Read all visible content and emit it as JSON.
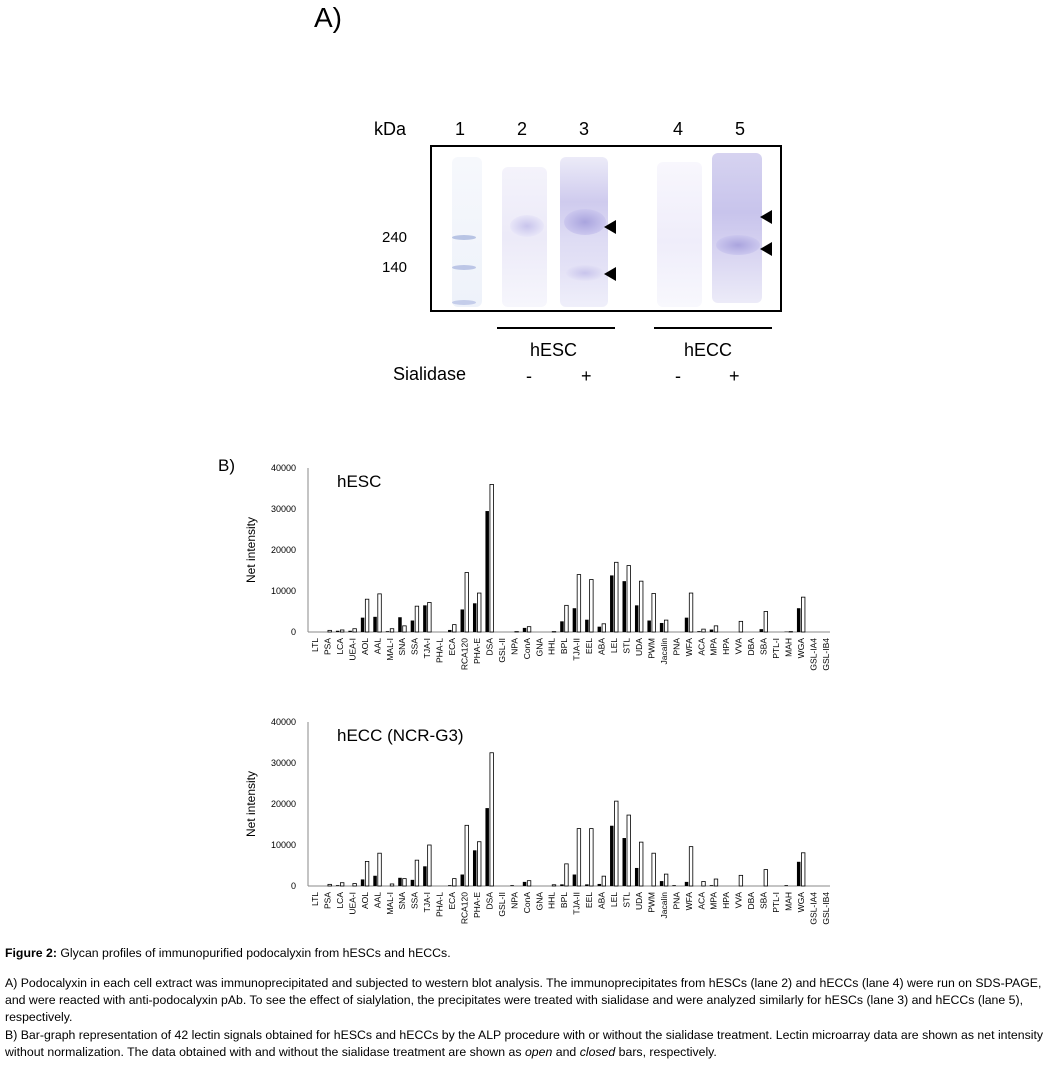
{
  "panel_a": {
    "label": "A)",
    "kda_label": "kDa",
    "lanes": [
      "1",
      "2",
      "3",
      "4",
      "5"
    ],
    "markers": [
      "240",
      "140"
    ],
    "groups": [
      "hESC",
      "hECC"
    ],
    "sialidase_label": "Sialidase",
    "sialidase_signs": [
      "-",
      "+",
      "-",
      "+"
    ]
  },
  "panel_b": {
    "label": "B)"
  },
  "chart_data": [
    {
      "type": "bar",
      "title": "hESC",
      "ylabel": "Net intensity",
      "xlabel": "",
      "ylim": [
        0,
        40000
      ],
      "yticks": [
        "0",
        "10000",
        "20000",
        "30000",
        "40000"
      ],
      "categories": [
        "LTL",
        "PSA",
        "LCA",
        "UEA-I",
        "AOL",
        "AAL",
        "MAL-I",
        "SNA",
        "SSA",
        "TJA-I",
        "PHA-L",
        "ECA",
        "RCA120",
        "PHA-E",
        "DSA",
        "GSL-II",
        "NPA",
        "ConA",
        "GNA",
        "HHL",
        "BPL",
        "TJA-II",
        "EEL",
        "ABA",
        "LEL",
        "STL",
        "UDA",
        "PWM",
        "Jacalin",
        "PNA",
        "WFA",
        "ACA",
        "MPA",
        "HPA",
        "VVA",
        "DBA",
        "SBA",
        "PTL-I",
        "MAH",
        "WGA",
        "GSL-IA4",
        "GSL-IB4"
      ],
      "series": [
        {
          "name": "without sialidase (closed)",
          "color": "#000000",
          "values": [
            0,
            0,
            300,
            300,
            3500,
            3700,
            200,
            3600,
            2800,
            6500,
            0,
            500,
            5500,
            7000,
            29500,
            0,
            0,
            1000,
            0,
            0,
            2600,
            5800,
            3000,
            1300,
            13800,
            12400,
            6500,
            2800,
            2200,
            0,
            3500,
            200,
            600,
            0,
            0,
            0,
            700,
            0,
            100,
            5800,
            0,
            0
          ]
        },
        {
          "name": "with sialidase (open)",
          "color": "#ffffff",
          "values": [
            0,
            400,
            500,
            800,
            8000,
            9300,
            800,
            1500,
            6300,
            7200,
            0,
            1800,
            14500,
            9500,
            36000,
            0,
            100,
            1300,
            0,
            100,
            6500,
            14000,
            12800,
            2000,
            17000,
            16200,
            12400,
            9400,
            2900,
            0,
            9500,
            700,
            1500,
            0,
            2600,
            0,
            5000,
            0,
            100,
            8500,
            0,
            0
          ]
        }
      ]
    },
    {
      "type": "bar",
      "title": "hECC (NCR-G3)",
      "ylabel": "Net intensity",
      "xlabel": "",
      "ylim": [
        0,
        40000
      ],
      "yticks": [
        "0",
        "10000",
        "20000",
        "30000",
        "40000"
      ],
      "categories": [
        "LTL",
        "PSA",
        "LCA",
        "UEA-I",
        "AOL",
        "AAL",
        "MAL-I",
        "SNA",
        "SSA",
        "TJA-I",
        "PHA-L",
        "ECA",
        "RCA120",
        "PHA-E",
        "DSA",
        "GSL-II",
        "NPA",
        "ConA",
        "GNA",
        "HHL",
        "BPL",
        "TJA-II",
        "EEL",
        "ABA",
        "LEL",
        "STL",
        "UDA",
        "PWM",
        "Jacalin",
        "PNA",
        "WFA",
        "ACA",
        "MPA",
        "HPA",
        "VVA",
        "DBA",
        "SBA",
        "PTL-I",
        "MAH",
        "WGA",
        "GSL-IA4",
        "GSL-IB4"
      ],
      "series": [
        {
          "name": "without sialidase (closed)",
          "color": "#000000",
          "values": [
            0,
            0,
            200,
            0,
            1600,
            2500,
            0,
            2000,
            1500,
            4800,
            0,
            200,
            2800,
            8700,
            19000,
            0,
            200,
            1000,
            0,
            0,
            400,
            2800,
            400,
            500,
            14700,
            11700,
            4400,
            0,
            1200,
            200,
            1000,
            0,
            200,
            0,
            0,
            0,
            0,
            0,
            200,
            5900,
            0,
            0
          ]
        },
        {
          "name": "with sialidase (open)",
          "color": "#ffffff",
          "values": [
            0,
            400,
            800,
            600,
            6000,
            8000,
            500,
            1800,
            6300,
            10000,
            0,
            1800,
            14800,
            10800,
            32500,
            0,
            0,
            1300,
            0,
            300,
            5400,
            14000,
            14000,
            2400,
            20700,
            17300,
            10700,
            8000,
            2900,
            0,
            9600,
            1100,
            1700,
            0,
            2600,
            0,
            4000,
            0,
            0,
            8100,
            0,
            0
          ]
        }
      ]
    }
  ],
  "caption": {
    "figure_label": "Figure 2:",
    "figure_title": " Glycan profiles of immunopurified podocalyxin from hESCs and hECCs.",
    "para_a": "A) Podocalyxin in each cell extract was immunoprecipitated and subjected to western blot analysis. The immunoprecipitates from hESCs (lane 2) and hECCs (lane 4) were run on SDS-PAGE, and were reacted with anti-podocalyxin pAb. To see the effect of sialylation, the precipitates were treated with sialidase and were analyzed similarly for hESCs (lane 3) and hECCs (lane 5), respectively.",
    "para_b_1": "B) Bar-graph representation of 42 lectin signals obtained for hESCs and hECCs by the ALP procedure with or without the sialidase treatment. Lectin microarray data are shown as net intensity without normalization. The data obtained with and without the sialidase treatment are shown as ",
    "para_b_open": "open",
    "para_b_2": " and ",
    "para_b_closed": "closed",
    "para_b_3": " bars, respectively."
  }
}
